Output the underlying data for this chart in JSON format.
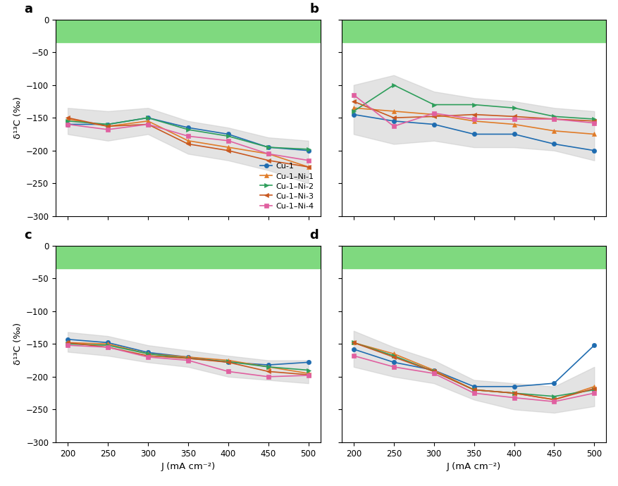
{
  "x": [
    200,
    250,
    300,
    350,
    400,
    450,
    500
  ],
  "panel_a": {
    "Cu1": [
      -160,
      -160,
      -150,
      -165,
      -175,
      -195,
      -200
    ],
    "Cu1Ni1": [
      -152,
      -163,
      -155,
      -185,
      -195,
      -205,
      -225
    ],
    "Cu1Ni2": [
      -155,
      -160,
      -150,
      -168,
      -178,
      -195,
      -198
    ],
    "Cu1Ni3": [
      -150,
      -163,
      -160,
      -190,
      -200,
      -215,
      -225
    ],
    "Cu1Ni4": [
      -160,
      -168,
      -160,
      -178,
      -185,
      -205,
      -215
    ],
    "shade_upper": [
      -135,
      -140,
      -135,
      -155,
      -165,
      -180,
      -185
    ],
    "shade_lower": [
      -175,
      -185,
      -175,
      -205,
      -215,
      -230,
      -250
    ]
  },
  "panel_b": {
    "Cu1": [
      -145,
      -155,
      -160,
      -175,
      -175,
      -190,
      -200
    ],
    "Cu1Ni1": [
      -135,
      -140,
      -145,
      -155,
      -160,
      -170,
      -175
    ],
    "Cu1Ni2": [
      -140,
      -100,
      -130,
      -130,
      -135,
      -148,
      -152
    ],
    "Cu1Ni3": [
      -125,
      -150,
      -148,
      -145,
      -148,
      -152,
      -155
    ],
    "Cu1Ni4": [
      -115,
      -163,
      -143,
      -152,
      -152,
      -152,
      -158
    ],
    "shade_upper": [
      -100,
      -85,
      -110,
      -120,
      -125,
      -135,
      -140
    ],
    "shade_lower": [
      -175,
      -190,
      -185,
      -195,
      -195,
      -200,
      -215
    ]
  },
  "panel_c": {
    "Cu1": [
      -143,
      -148,
      -163,
      -170,
      -178,
      -182,
      -178
    ],
    "Cu1Ni1": [
      -148,
      -150,
      -165,
      -170,
      -175,
      -185,
      -195
    ],
    "Cu1Ni2": [
      -150,
      -152,
      -165,
      -172,
      -177,
      -185,
      -190
    ],
    "Cu1Ni3": [
      -148,
      -155,
      -168,
      -172,
      -178,
      -192,
      -197
    ],
    "Cu1Ni4": [
      -152,
      -155,
      -170,
      -175,
      -192,
      -200,
      -198
    ],
    "shade_upper": [
      -132,
      -138,
      -152,
      -160,
      -168,
      -175,
      -175
    ],
    "shade_lower": [
      -162,
      -168,
      -178,
      -185,
      -200,
      -205,
      -210
    ]
  },
  "panel_d": {
    "Cu1": [
      -158,
      -178,
      -190,
      -215,
      -215,
      -210,
      -152
    ],
    "Cu1Ni1": [
      -148,
      -165,
      -190,
      -220,
      -225,
      -235,
      -215
    ],
    "Cu1Ni2": [
      -148,
      -168,
      -192,
      -220,
      -225,
      -230,
      -220
    ],
    "Cu1Ni3": [
      -148,
      -170,
      -192,
      -220,
      -225,
      -235,
      -218
    ],
    "Cu1Ni4": [
      -168,
      -185,
      -195,
      -225,
      -232,
      -238,
      -225
    ],
    "shade_upper": [
      -130,
      -155,
      -175,
      -205,
      -210,
      -215,
      -185
    ],
    "shade_lower": [
      -185,
      -200,
      -210,
      -235,
      -250,
      -255,
      -245
    ]
  },
  "green_band": {
    "ymin": -35,
    "ymax": 0
  },
  "green_color": "#7FD97F",
  "ylim": [
    -300,
    0
  ],
  "yticks": [
    0,
    -50,
    -100,
    -150,
    -200,
    -250,
    -300
  ],
  "colors": {
    "Cu1": "#1f6cb0",
    "Cu1Ni1": "#e07b28",
    "Cu1Ni2": "#2e9e5b",
    "Cu1Ni3": "#c85820",
    "Cu1Ni4": "#e060a0"
  },
  "labels": [
    "Cu-1",
    "Cu-1–Ni-1",
    "Cu-1–Ni-2",
    "Cu-1–Ni-3",
    "Cu-1–Ni-4"
  ],
  "markers": [
    "o",
    "^",
    ">",
    "<",
    "s"
  ],
  "panel_labels": [
    "a",
    "b",
    "c",
    "d"
  ],
  "ylabel": "δ¹³C (‰)",
  "xlabel": "J (mA cm⁻²)",
  "shade_color": "#c8c8c8",
  "shade_alpha": 0.5
}
